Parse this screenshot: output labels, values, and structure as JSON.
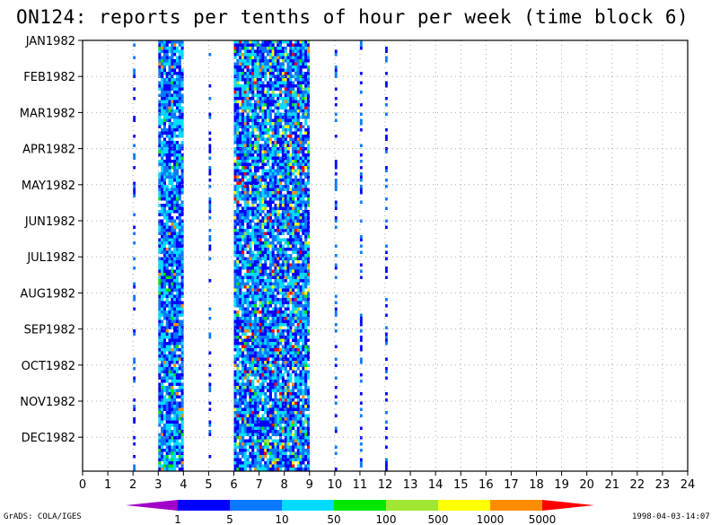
{
  "title": "ON124: reports per tenths of hour per week (time block 6)",
  "footer": {
    "left": "GrADS: COLA/IGES",
    "right": "1998-04-03-14:07"
  },
  "chart_data": {
    "type": "heatmap",
    "title": "ON124: reports per tenths of hour per week (time block 6)",
    "xlabel": "",
    "ylabel": "",
    "x_ticks": [
      "0",
      "1",
      "2",
      "3",
      "4",
      "5",
      "6",
      "7",
      "8",
      "9",
      "10",
      "11",
      "12",
      "13",
      "14",
      "15",
      "16",
      "17",
      "18",
      "19",
      "20",
      "21",
      "22",
      "23",
      "24"
    ],
    "y_ticks": [
      "JAN1982",
      "FEB1982",
      "MAR1982",
      "APR1982",
      "MAY1982",
      "JUN1982",
      "JUL1982",
      "AUG1982",
      "SEP1982",
      "OCT1982",
      "NOV1982",
      "DEC1982"
    ],
    "xlim": [
      0,
      24
    ],
    "ylim": [
      "JAN1982",
      "DEC1982"
    ],
    "grid": true,
    "colorbar": {
      "levels": [
        "1",
        "5",
        "10",
        "50",
        "100",
        "500",
        "1000",
        "5000"
      ],
      "colors": [
        "#a000c8",
        "#0000ff",
        "#0a78ff",
        "#00dcff",
        "#00e600",
        "#a0e632",
        "#ffff00",
        "#ff8c00",
        "#ff0000"
      ]
    },
    "data_bands": [
      {
        "x": [
          2.0,
          2.1
        ],
        "density": "sparse",
        "levels": [
          "1",
          "5"
        ]
      },
      {
        "x": [
          3.0,
          4.0
        ],
        "density": "dense",
        "levels": [
          "1",
          "5",
          "10",
          "50",
          "1000"
        ]
      },
      {
        "x": [
          5.0,
          5.1
        ],
        "density": "sparse",
        "levels": [
          "1",
          "5"
        ]
      },
      {
        "x": [
          6.0,
          9.0
        ],
        "density": "dense",
        "levels": [
          "1",
          "5",
          "10",
          "50",
          "100",
          "500",
          "1000",
          "5000"
        ]
      },
      {
        "x": [
          10.0,
          10.1
        ],
        "density": "sparse",
        "levels": [
          "1",
          "5"
        ]
      },
      {
        "x": [
          11.0,
          11.1
        ],
        "density": "sparse",
        "levels": [
          "1",
          "5"
        ]
      },
      {
        "x": [
          12.0,
          12.1
        ],
        "density": "sparse",
        "levels": [
          "1",
          "5"
        ]
      }
    ]
  }
}
